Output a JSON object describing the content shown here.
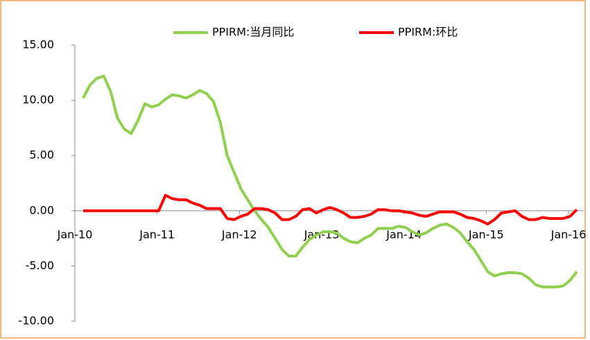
{
  "chart_data": {
    "type": "line",
    "categories": [
      "Jan-10",
      null,
      null,
      null,
      null,
      null,
      null,
      null,
      null,
      null,
      null,
      null,
      "Jan-11",
      null,
      null,
      null,
      null,
      null,
      null,
      null,
      null,
      null,
      null,
      null,
      "Jan-12",
      null,
      null,
      null,
      null,
      null,
      null,
      null,
      null,
      null,
      null,
      null,
      "Jan-13",
      null,
      null,
      null,
      null,
      null,
      null,
      null,
      null,
      null,
      null,
      null,
      "Jan-14",
      null,
      null,
      null,
      null,
      null,
      null,
      null,
      null,
      null,
      null,
      null,
      "Jan-15",
      null,
      null,
      null,
      null,
      null,
      null,
      null,
      null,
      null,
      null,
      null,
      "Jan-16"
    ],
    "series": [
      {
        "name": "PPIRM:当月同比",
        "color": "#8fd14f",
        "values": [
          10.2,
          11.4,
          12.0,
          12.2,
          10.8,
          8.4,
          7.4,
          7.0,
          8.2,
          9.7,
          9.4,
          9.6,
          10.1,
          10.5,
          10.4,
          10.2,
          10.5,
          10.9,
          10.6,
          9.9,
          8.0,
          5.0,
          3.5,
          2.0,
          1.0,
          0.0,
          -0.8,
          -1.5,
          -2.5,
          -3.5,
          -4.1,
          -4.1,
          -3.3,
          -2.6,
          -2.2,
          -1.9,
          -1.9,
          -2.0,
          -2.5,
          -2.8,
          -2.9,
          -2.5,
          -2.2,
          -1.6,
          -1.6,
          -1.6,
          -1.4,
          -1.5,
          -1.9,
          -2.2,
          -2.0,
          -1.6,
          -1.3,
          -1.2,
          -1.5,
          -2.0,
          -2.8,
          -3.5,
          -4.5,
          -5.5,
          -5.9,
          -5.7,
          -5.6,
          -5.6,
          -5.7,
          -6.1,
          -6.7,
          -6.9,
          -6.9,
          -6.9,
          -6.8,
          -6.3,
          -5.5
        ]
      },
      {
        "name": "PPIRM:环比",
        "color": "#ff0000",
        "values": [
          0,
          0,
          0,
          0,
          0,
          0,
          0,
          0,
          0,
          0,
          0,
          0,
          1.4,
          1.1,
          1.0,
          1.0,
          0.7,
          0.5,
          0.2,
          0.2,
          0.2,
          -0.7,
          -0.8,
          -0.5,
          -0.3,
          0.2,
          0.2,
          0.1,
          -0.2,
          -0.8,
          -0.8,
          -0.5,
          0.1,
          0.2,
          -0.2,
          0.1,
          0.3,
          0.1,
          -0.2,
          -0.6,
          -0.6,
          -0.5,
          -0.3,
          0.1,
          0.1,
          0.0,
          0.0,
          -0.1,
          -0.2,
          -0.4,
          -0.5,
          -0.3,
          -0.1,
          -0.1,
          -0.1,
          -0.3,
          -0.6,
          -0.7,
          -0.9,
          -1.2,
          -0.8,
          -0.2,
          -0.1,
          0.0,
          -0.5,
          -0.8,
          -0.8,
          -0.6,
          -0.7,
          -0.7,
          -0.7,
          -0.5,
          0.1
        ]
      }
    ],
    "ylim": [
      -10,
      15
    ],
    "yticks": [
      {
        "value": -10,
        "label": "-10.00"
      },
      {
        "value": -5,
        "label": "-5.00"
      },
      {
        "value": 0,
        "label": "0.00"
      },
      {
        "value": 5,
        "label": "5.00"
      },
      {
        "value": 10,
        "label": "10.00"
      },
      {
        "value": 15,
        "label": "15.00"
      }
    ],
    "legend": "top"
  }
}
